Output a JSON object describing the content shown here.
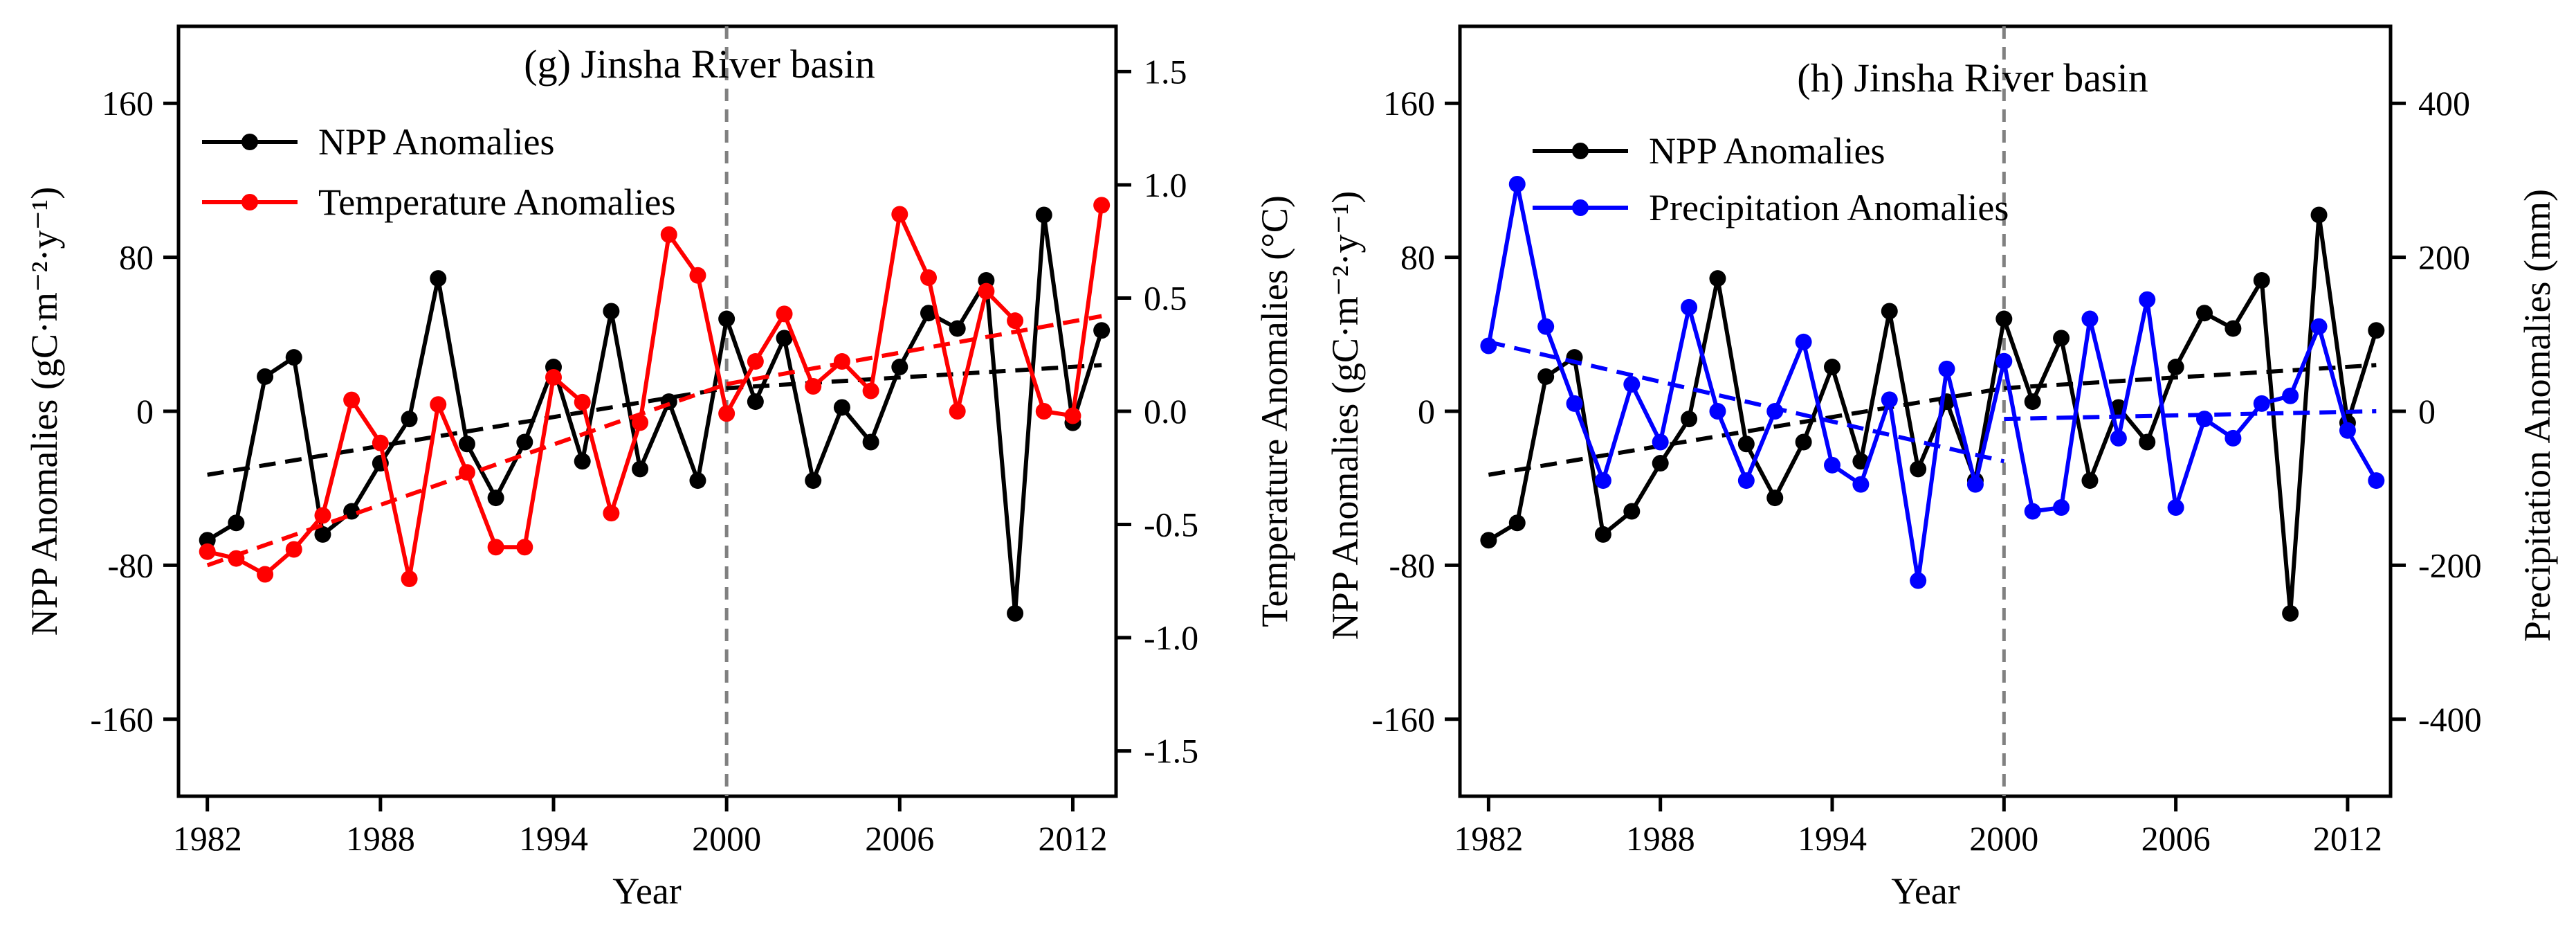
{
  "chart_data": [
    {
      "type": "line",
      "title": "(g) Jinsha River basin",
      "xlabel": "Year",
      "ylabel_left": "NPP Anomalies (gC·m⁻²·y⁻¹)",
      "ylabel_right": "Temperature Anomalies (°C)",
      "xlim": [
        1981,
        2013.5
      ],
      "ylim_left": [
        -200,
        200
      ],
      "ylim_right": [
        -1.7,
        1.7
      ],
      "x_ticks": [
        1982,
        1988,
        1994,
        2000,
        2006,
        2012
      ],
      "x_tick_labels": [
        "1982",
        "1988",
        "1994",
        "2000",
        "2006",
        "2012"
      ],
      "y_ticks_left": [
        -160,
        -80,
        0,
        80,
        160
      ],
      "y_tick_labels_left": [
        "-160",
        "-80",
        "0",
        "80",
        "160"
      ],
      "y_ticks_right": [
        -1.5,
        -1.0,
        -0.5,
        0.0,
        0.5,
        1.0,
        1.5
      ],
      "y_tick_labels_right": [
        "-1.5",
        "-1.0",
        "-0.5",
        "0.0",
        "0.5",
        "1.0",
        "1.5"
      ],
      "break_year": 2000,
      "years": [
        1982,
        1983,
        1984,
        1985,
        1986,
        1987,
        1988,
        1989,
        1990,
        1991,
        1992,
        1993,
        1994,
        1995,
        1996,
        1997,
        1998,
        1999,
        2000,
        2001,
        2002,
        2003,
        2004,
        2005,
        2006,
        2007,
        2008,
        2009,
        2010,
        2011,
        2012,
        2013
      ],
      "series": [
        {
          "name": "NPP Anomalies",
          "axis": "left",
          "color": "#000000",
          "values": [
            -67,
            -58,
            18,
            28,
            -64,
            -52,
            -27,
            -4,
            69,
            -17,
            -45,
            -16,
            23,
            -26,
            52,
            -30,
            5,
            -36,
            48,
            5,
            38,
            -36,
            2,
            -16,
            23,
            51,
            43,
            68,
            -105,
            102,
            -6,
            42
          ],
          "trend_segments": [
            {
              "x": [
                1982,
                2000
              ],
              "y": [
                -33,
                12
              ]
            },
            {
              "x": [
                2000,
                2013
              ],
              "y": [
                12,
                24
              ]
            }
          ]
        },
        {
          "name": "Temperature Anomalies",
          "axis": "right",
          "color": "#ff0000",
          "values": [
            -0.62,
            -0.65,
            -0.72,
            -0.61,
            -0.46,
            0.05,
            -0.14,
            -0.74,
            0.03,
            -0.27,
            -0.6,
            -0.6,
            0.15,
            0.04,
            -0.45,
            -0.05,
            0.78,
            0.6,
            -0.01,
            0.22,
            0.43,
            0.11,
            0.22,
            0.09,
            0.87,
            0.59,
            0.0,
            0.53,
            0.4,
            0.0,
            -0.02,
            0.91
          ],
          "trend_segments": [
            {
              "x": [
                1982,
                2000
              ],
              "y": [
                -0.68,
                0.12
              ]
            },
            {
              "x": [
                2000,
                2013
              ],
              "y": [
                0.12,
                0.42
              ]
            }
          ]
        }
      ]
    },
    {
      "type": "line",
      "title": "(h) Jinsha River basin",
      "xlabel": "Year",
      "ylabel_left": "NPP Anomalies (gC·m⁻²·y⁻¹)",
      "ylabel_right": "Precipitation Anomalies (mm)",
      "xlim": [
        1981,
        2013.5
      ],
      "ylim_left": [
        -200,
        200
      ],
      "ylim_right": [
        -500,
        500
      ],
      "x_ticks": [
        1982,
        1988,
        1994,
        2000,
        2006,
        2012
      ],
      "x_tick_labels": [
        "1982",
        "1988",
        "1994",
        "2000",
        "2006",
        "2012"
      ],
      "y_ticks_left": [
        -160,
        -80,
        0,
        80,
        160
      ],
      "y_tick_labels_left": [
        "-160",
        "-80",
        "0",
        "80",
        "160"
      ],
      "y_ticks_right": [
        -400,
        -200,
        0,
        200,
        400
      ],
      "y_tick_labels_right": [
        "-400",
        "-200",
        "0",
        "200",
        "400"
      ],
      "break_year": 2000,
      "years": [
        1982,
        1983,
        1984,
        1985,
        1986,
        1987,
        1988,
        1989,
        1990,
        1991,
        1992,
        1993,
        1994,
        1995,
        1996,
        1997,
        1998,
        1999,
        2000,
        2001,
        2002,
        2003,
        2004,
        2005,
        2006,
        2007,
        2008,
        2009,
        2010,
        2011,
        2012,
        2013
      ],
      "series": [
        {
          "name": "NPP Anomalies",
          "axis": "left",
          "color": "#000000",
          "values": [
            -67,
            -58,
            18,
            28,
            -64,
            -52,
            -27,
            -4,
            69,
            -17,
            -45,
            -16,
            23,
            -26,
            52,
            -30,
            5,
            -36,
            48,
            5,
            38,
            -36,
            2,
            -16,
            23,
            51,
            43,
            68,
            -105,
            102,
            -6,
            42
          ],
          "trend_segments": [
            {
              "x": [
                1982,
                2000
              ],
              "y": [
                -33,
                12
              ]
            },
            {
              "x": [
                2000,
                2013
              ],
              "y": [
                12,
                24
              ]
            }
          ]
        },
        {
          "name": "Precipitation Anomalies",
          "axis": "right",
          "color": "#0000ff",
          "values": [
            85,
            295,
            110,
            10,
            -90,
            35,
            -40,
            135,
            0,
            -90,
            0,
            90,
            -70,
            -95,
            15,
            -220,
            55,
            -95,
            65,
            -130,
            -125,
            120,
            -35,
            145,
            -125,
            -10,
            -35,
            10,
            20,
            110,
            -25,
            -90
          ],
          "trend_segments": [
            {
              "x": [
                1982,
                2000
              ],
              "y": [
                90,
                -65
              ]
            },
            {
              "x": [
                2000,
                2013
              ],
              "y": [
                -10,
                0
              ]
            }
          ]
        }
      ]
    }
  ]
}
